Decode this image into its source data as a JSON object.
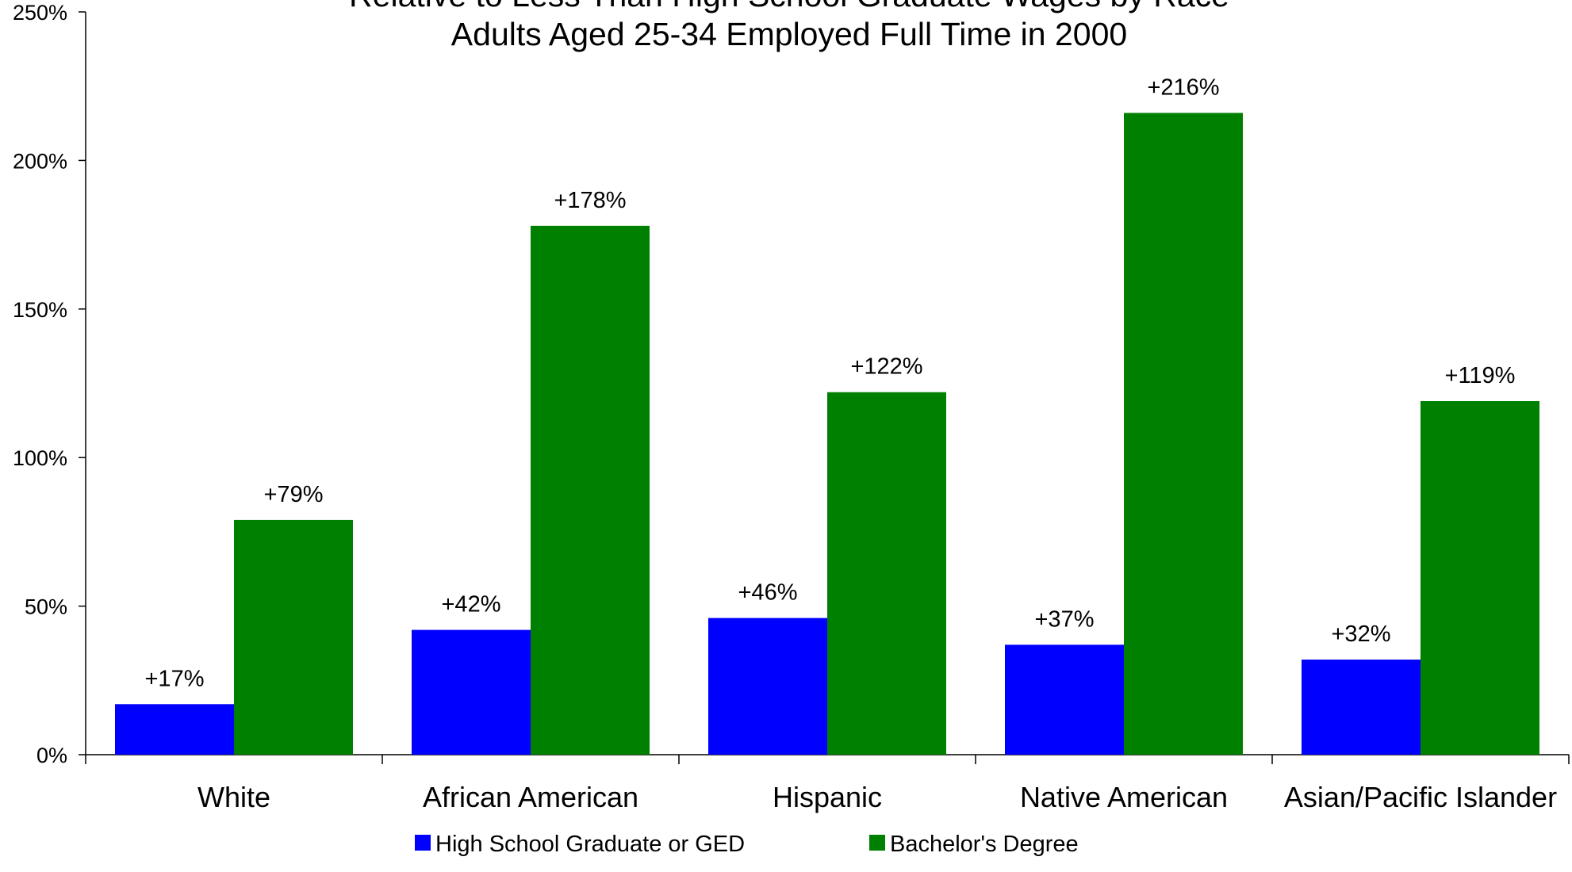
{
  "chart_data": {
    "type": "bar",
    "title_lines": [
      "Relative to Less Than High School Graduate Wages by Race",
      "Adults Aged 25-34 Employed Full Time in 2000"
    ],
    "categories": [
      "White",
      "African American",
      "Hispanic",
      "Native American",
      "Asian/Pacific Islander"
    ],
    "series": [
      {
        "name": "High School Graduate or GED",
        "color": "#0000ff",
        "values": [
          17,
          42,
          46,
          37,
          32
        ],
        "labels": [
          "+17%",
          "+42%",
          "+46%",
          "+37%",
          "+32%"
        ]
      },
      {
        "name": "Bachelor's Degree",
        "color": "#008000",
        "values": [
          79,
          178,
          122,
          216,
          119
        ],
        "labels": [
          "+79%",
          "+178%",
          "+122%",
          "+216%",
          "+119%"
        ]
      }
    ],
    "ylim": [
      0,
      250
    ],
    "yticks": [
      0,
      50,
      100,
      150,
      200,
      250
    ],
    "ytick_labels": [
      "0%",
      "50%",
      "100%",
      "150%",
      "200%",
      "250%"
    ],
    "xlabel": "",
    "ylabel": "",
    "grid": false,
    "legend_position": "bottom"
  }
}
